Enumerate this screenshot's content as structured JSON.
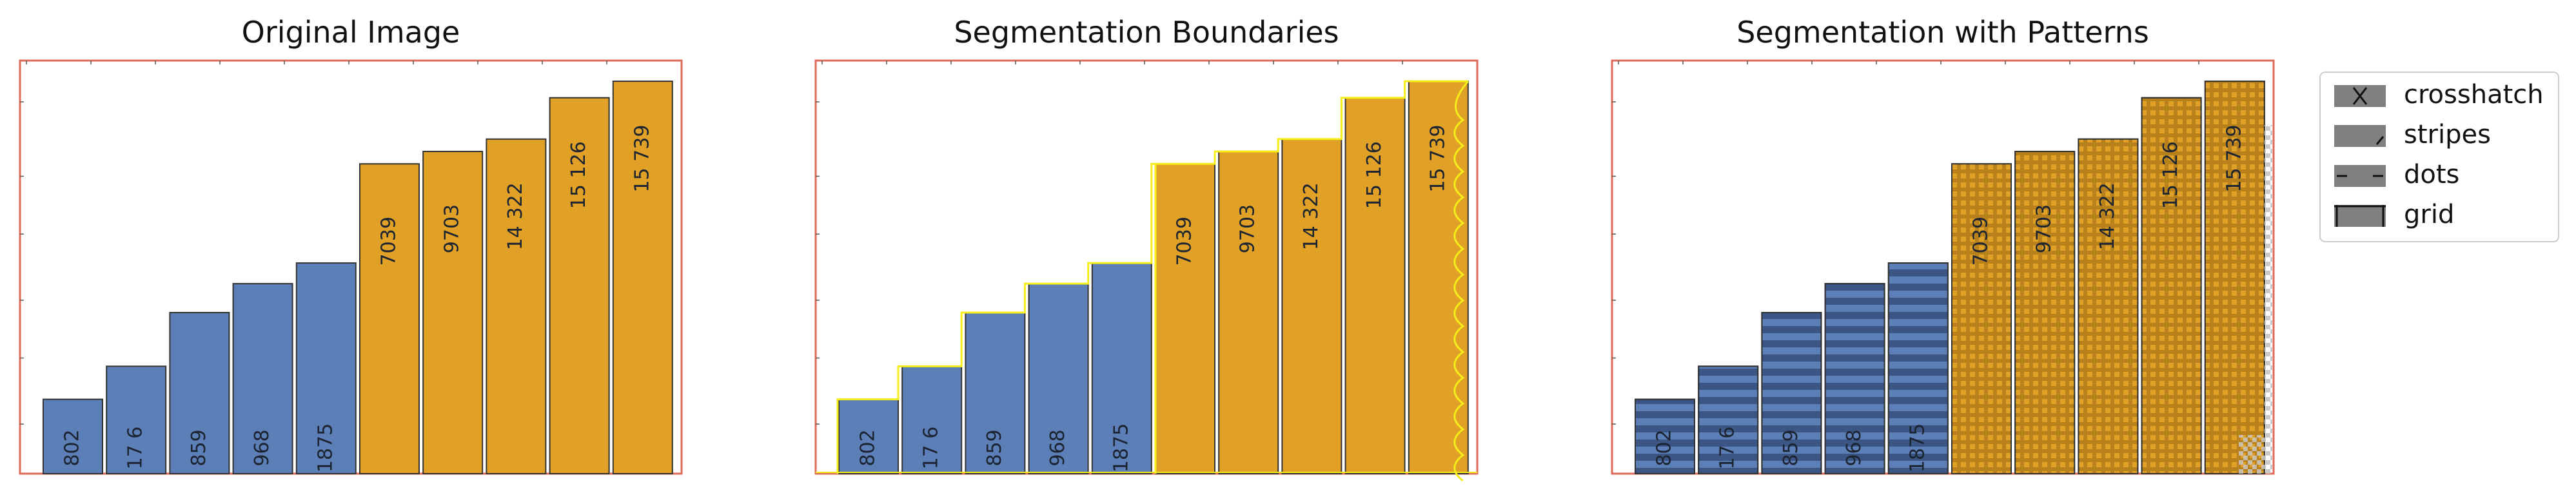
{
  "panels": [
    {
      "title": "Original Image"
    },
    {
      "title": "Segmentation Boundaries"
    },
    {
      "title": "Segmentation with Patterns"
    }
  ],
  "legend": {
    "placement": "right",
    "items": [
      {
        "label": "crosshatch",
        "swatch": "cross"
      },
      {
        "label": "stripes",
        "swatch": "slash"
      },
      {
        "label": "dots",
        "swatch": "dash"
      },
      {
        "label": "grid",
        "swatch": "grid"
      }
    ]
  },
  "colors": {
    "blue": "#5b7fb6",
    "orange": "#e1a026",
    "frame": "#e06a5a",
    "boundary": "#f5ee1b",
    "bar_edge": "#333333"
  },
  "chart_data": [
    {
      "type": "bar",
      "title": "Original Image",
      "categories": [
        "802",
        "17.6",
        "859",
        "968",
        "1875",
        "7039",
        "9703",
        "14322",
        "15126",
        "15739"
      ],
      "series": [
        {
          "values": [
            0.18,
            0.26,
            0.39,
            0.46,
            0.51,
            0.75,
            0.78,
            0.81,
            0.91,
            0.95
          ]
        }
      ],
      "data_labels": [
        "802",
        "17 6",
        "859",
        "968",
        "1875",
        "7039",
        "9703",
        "14 322",
        "15 126",
        "15 739"
      ],
      "bar_colors": [
        "blue",
        "blue",
        "blue",
        "blue",
        "blue",
        "orange",
        "orange",
        "orange",
        "orange",
        "orange"
      ],
      "ylim": [
        0,
        1
      ],
      "grid": false
    },
    {
      "type": "bar",
      "title": "Segmentation Boundaries",
      "categories": [
        "802",
        "17.6",
        "859",
        "968",
        "1875",
        "7039",
        "9703",
        "14322",
        "15126",
        "15739"
      ],
      "series": [
        {
          "values": [
            0.18,
            0.26,
            0.39,
            0.46,
            0.51,
            0.75,
            0.78,
            0.81,
            0.91,
            0.95
          ]
        }
      ],
      "data_labels": [
        "802",
        "17 6",
        "859",
        "968",
        "1875",
        "7039",
        "9703",
        "14 322",
        "15 126",
        "15 739"
      ],
      "bar_colors": [
        "blue",
        "blue",
        "blue",
        "blue",
        "blue",
        "orange",
        "orange",
        "orange",
        "orange",
        "orange"
      ],
      "ylim": [
        0,
        1
      ],
      "grid": false,
      "overlay": "boundary"
    },
    {
      "type": "bar",
      "title": "Segmentation with Patterns",
      "categories": [
        "802",
        "17.6",
        "859",
        "968",
        "1875",
        "7039",
        "9703",
        "14322",
        "15126",
        "15739"
      ],
      "series": [
        {
          "values": [
            0.18,
            0.26,
            0.39,
            0.46,
            0.51,
            0.75,
            0.78,
            0.81,
            0.91,
            0.95
          ]
        }
      ],
      "data_labels": [
        "802",
        "17 6",
        "859",
        "968",
        "1875",
        "7039",
        "9703",
        "14 322",
        "15 126",
        "15 739"
      ],
      "bar_colors": [
        "blue",
        "blue",
        "blue",
        "blue",
        "blue",
        "orange",
        "orange",
        "orange",
        "orange",
        "orange"
      ],
      "ylim": [
        0,
        1
      ],
      "grid": false,
      "overlay": "patterns"
    }
  ]
}
